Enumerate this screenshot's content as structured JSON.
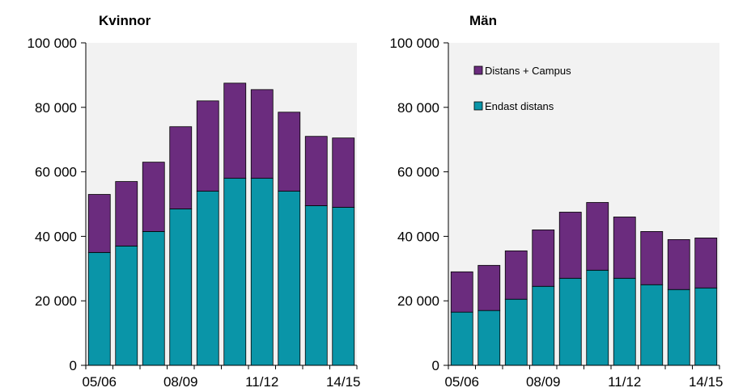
{
  "colors": {
    "campus": "#6b2c7e",
    "distans": "#0a95a8",
    "plot_bg": "#f2f2f2",
    "bar_edge": "#000000"
  },
  "legend": {
    "campus": "Distans + Campus",
    "distans": "Endast distans",
    "placement": "top-left (second chart)"
  },
  "chart_data": [
    {
      "type": "bar",
      "stacked": true,
      "title": "Kvinnor",
      "categories": [
        "05/06",
        "06/07",
        "07/08",
        "08/09",
        "09/10",
        "10/11",
        "11/12",
        "12/13",
        "13/14",
        "14/15"
      ],
      "x_tick_labels": [
        "05/06",
        "08/09",
        "11/12",
        "14/15"
      ],
      "y_tick_labels": [
        "0",
        "20 000",
        "40 000",
        "60 000",
        "80 000",
        "100 000"
      ],
      "ylim": [
        0,
        100000
      ],
      "grid": false,
      "series": [
        {
          "name": "Endast distans",
          "values": [
            35000,
            37000,
            41500,
            48500,
            54000,
            58000,
            58000,
            54000,
            49500,
            49000
          ]
        },
        {
          "name": "Distans + Campus",
          "values": [
            18000,
            20000,
            21500,
            25500,
            28000,
            29500,
            27500,
            24500,
            21500,
            21500
          ]
        }
      ]
    },
    {
      "type": "bar",
      "stacked": true,
      "title": "Män",
      "categories": [
        "05/06",
        "06/07",
        "07/08",
        "08/09",
        "09/10",
        "10/11",
        "11/12",
        "12/13",
        "13/14",
        "14/15"
      ],
      "x_tick_labels": [
        "05/06",
        "08/09",
        "11/12",
        "14/15"
      ],
      "y_tick_labels": [
        "0",
        "20 000",
        "40 000",
        "60 000",
        "80 000",
        "100 000"
      ],
      "ylim": [
        0,
        100000
      ],
      "grid": false,
      "series": [
        {
          "name": "Endast distans",
          "values": [
            16500,
            17000,
            20500,
            24500,
            27000,
            29500,
            27000,
            25000,
            23500,
            24000
          ]
        },
        {
          "name": "Distans + Campus",
          "values": [
            12500,
            14000,
            15000,
            17500,
            20500,
            21000,
            19000,
            16500,
            15500,
            15500
          ]
        }
      ]
    }
  ]
}
